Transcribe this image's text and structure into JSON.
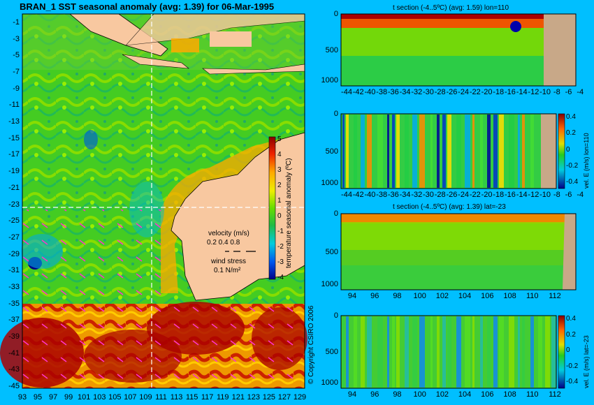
{
  "map": {
    "title": "BRAN_1  SST seasonal anomaly  (avg: 1.39) for 06-Mar-1995",
    "lat_ticks": [
      "-1",
      "-3",
      "-5",
      "-7",
      "-9",
      "-11",
      "-13",
      "-15",
      "-17",
      "-19",
      "-21",
      "-23",
      "-25",
      "-27",
      "-29",
      "-31",
      "-33",
      "-35",
      "-37",
      "-39",
      "-41",
      "-43",
      "-45"
    ],
    "lon_ticks": [
      "93",
      "95",
      "97",
      "99",
      "101",
      "103",
      "105",
      "107",
      "109",
      "111",
      "113",
      "115",
      "117",
      "119",
      "121",
      "123",
      "125",
      "127",
      "129"
    ],
    "colorbar_ticks": [
      "5",
      "4",
      "3",
      "2",
      "1",
      "0",
      "-1",
      "-2",
      "-3",
      "-4"
    ],
    "colorbar_label": "temperature seasonal anomaly (ºC)",
    "legend": {
      "velocity_label": "velocity (m/s)",
      "velocity_values": "0.2 0.4 0.8",
      "wind_label": "wind stress",
      "wind_value": "0.1 N/m²"
    },
    "copyright": "© Copyright CSIRO 2006"
  },
  "panels": [
    {
      "title": "t section (-4..5ºC) (avg: 1.59) lon=110",
      "y_ticks": [
        "0",
        "500",
        "1000"
      ],
      "x_ticks": [
        "-44",
        "-42",
        "-40",
        "-38",
        "-36",
        "-34",
        "-32",
        "-30",
        "-28",
        "-26",
        "-24",
        "-22",
        "-20",
        "-18",
        "-16",
        "-14",
        "-12",
        "-10",
        "-8",
        "-6",
        "-4"
      ]
    },
    {
      "title": "",
      "y_ticks": [
        "0",
        "500",
        "1000"
      ],
      "x_ticks": [
        "-44",
        "-42",
        "-40",
        "-38",
        "-36",
        "-34",
        "-32",
        "-30",
        "-28",
        "-26",
        "-24",
        "-22",
        "-20",
        "-18",
        "-16",
        "-14",
        "-12",
        "-10",
        "-8",
        "-6",
        "-4"
      ],
      "cbar_ticks": [
        "0.4",
        "0.2",
        "0",
        "-0.2",
        "-0.4"
      ],
      "cbar_label": "vel. E (m/s) lon=110"
    },
    {
      "title": "t section (-4..5ºC) (avg: 1.39) lat=-23",
      "y_ticks": [
        "0",
        "500",
        "1000"
      ],
      "x_ticks": [
        "94",
        "96",
        "98",
        "100",
        "102",
        "104",
        "106",
        "108",
        "110",
        "112"
      ]
    },
    {
      "title": "",
      "y_ticks": [
        "0",
        "500",
        "1000"
      ],
      "x_ticks": [
        "94",
        "96",
        "98",
        "100",
        "102",
        "104",
        "106",
        "108",
        "110",
        "112"
      ],
      "cbar_ticks": [
        "0.4",
        "0.2",
        "0",
        "-0.2",
        "-0.4"
      ],
      "cbar_label": "vel. E (m/s) lat=-23"
    }
  ],
  "colors": {
    "background": "#00bfff",
    "land": "#f8c8a0",
    "ocean_mid": "#33cc33",
    "warm": "#dd2200",
    "cool": "#1166ee"
  }
}
